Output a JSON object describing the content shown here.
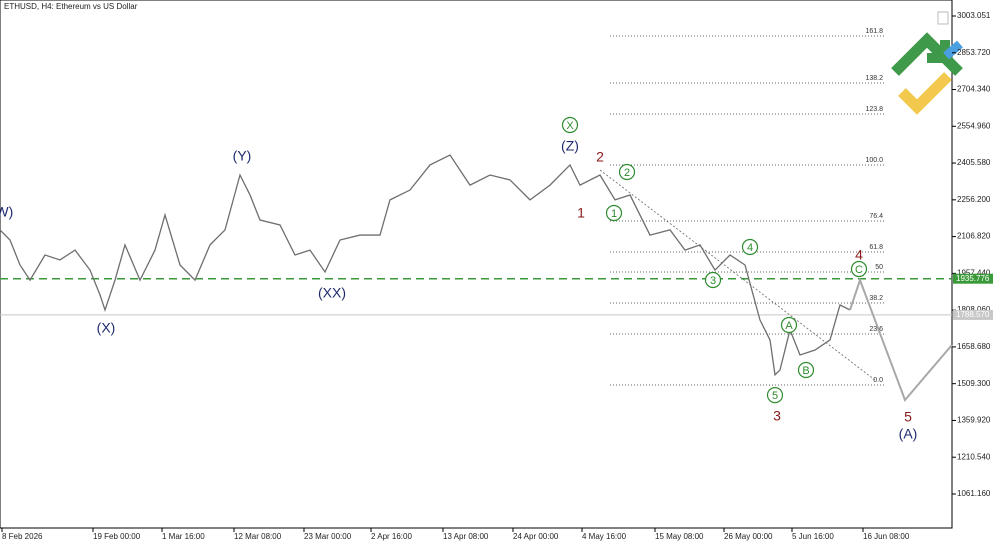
{
  "chart_data": {
    "type": "line",
    "title": "ETHUSD, H4:  Ethereum vs US Dollar",
    "xlim": [
      0,
      952
    ],
    "ylim": [
      923,
      3068
    ],
    "yticks": [
      {
        "value": 3003.051,
        "label": "3003.051"
      },
      {
        "value": 2853.72,
        "label": "2853.720"
      },
      {
        "value": 2704.34,
        "label": "2704.340"
      },
      {
        "value": 2554.96,
        "label": "2554.960"
      },
      {
        "value": 2405.58,
        "label": "2405.580"
      },
      {
        "value": 2256.2,
        "label": "2256.200"
      },
      {
        "value": 2106.82,
        "label": "2106.820"
      },
      {
        "value": 1957.44,
        "label": "1957.440"
      },
      {
        "value": 1808.06,
        "label": "1808.060"
      },
      {
        "value": 1658.68,
        "label": "1658.680"
      },
      {
        "value": 1509.3,
        "label": "1509.300"
      },
      {
        "value": 1359.92,
        "label": "1359.920"
      },
      {
        "value": 1210.54,
        "label": "1210.540"
      },
      {
        "value": 1061.16,
        "label": "1061.160"
      }
    ],
    "xticks": [
      {
        "value": 2,
        "label": "8 Feb 2026"
      },
      {
        "value": 93,
        "label": "19 Feb 00:00"
      },
      {
        "value": 162,
        "label": "1 Mar 16:00"
      },
      {
        "value": 234,
        "label": "12 Mar 08:00"
      },
      {
        "value": 304,
        "label": "23 Mar 00:00"
      },
      {
        "value": 371,
        "label": "2 Apr 16:00"
      },
      {
        "value": 443,
        "label": "13 Apr 08:00"
      },
      {
        "value": 513,
        "label": "24 Apr 00:00"
      },
      {
        "value": 582,
        "label": "4 May 16:00"
      },
      {
        "value": 655,
        "label": "15 May 08:00"
      },
      {
        "value": 724,
        "label": "26 May 00:00"
      },
      {
        "value": 792,
        "label": "5 Jun 16:00"
      },
      {
        "value": 863,
        "label": "16 Jun 08:00"
      }
    ],
    "series": [
      {
        "name": "ETHUSD",
        "color": "#6e6e6e",
        "x": [
          0,
          10,
          20,
          30,
          45,
          60,
          75,
          90,
          100,
          105,
          115,
          125,
          140,
          155,
          165,
          180,
          195,
          210,
          225,
          240,
          250,
          260,
          280,
          295,
          310,
          325,
          340,
          360,
          380,
          390,
          410,
          430,
          450,
          470,
          490,
          510,
          530,
          550,
          570,
          580,
          600,
          615,
          630,
          650,
          670,
          685,
          700,
          715,
          730,
          745,
          760,
          770,
          775,
          780,
          790,
          800,
          815,
          830,
          840,
          850
        ],
        "values": [
          2133.7,
          2093,
          1991.5,
          1930,
          2032,
          2012,
          2052,
          1971,
          1870,
          1809,
          1930,
          2073,
          1930,
          2052,
          2195,
          1991.5,
          1930,
          2073,
          2134,
          2357,
          2276,
          2174,
          2154,
          2032,
          2052,
          1963,
          2093,
          2113,
          2113,
          2256,
          2296,
          2398,
          2438,
          2316,
          2357,
          2337,
          2256,
          2316,
          2398,
          2316,
          2357,
          2256,
          2276,
          2113,
          2134,
          2052,
          2073,
          1971,
          2032,
          1991.5,
          1768,
          1687,
          1545,
          1565,
          1728,
          1626,
          1646,
          1687,
          1829,
          1809
        ]
      },
      {
        "name": "Projection",
        "color": "#a8a8a8",
        "x": [
          850,
          860,
          905,
          952
        ],
        "values": [
          1809,
          1930,
          1443,
          1667
        ]
      }
    ],
    "levels": [
      {
        "value": 1935.776,
        "label": "1935.776",
        "color": "#3a9a3a",
        "dashed": true
      },
      {
        "value": 1788.57,
        "label": "1788.570",
        "color": "#c8c8c8",
        "dashed": false
      }
    ],
    "fib": [
      {
        "value": 2921.8,
        "label": "161.8"
      },
      {
        "value": 2730.8,
        "label": "138.2"
      },
      {
        "value": 2605,
        "label": "123.8"
      },
      {
        "value": 2397.7,
        "label": "100.0"
      },
      {
        "value": 2170.2,
        "label": "76.4"
      },
      {
        "value": 2044.3,
        "label": "61.8"
      },
      {
        "value": 1963,
        "label": "50"
      },
      {
        "value": 1837,
        "label": "38.2"
      },
      {
        "value": 1711.2,
        "label": "23.6"
      },
      {
        "value": 1504,
        "label": "0.0"
      }
    ],
    "fib_x": [
      610,
      885
    ],
    "annotations": [
      {
        "text": "(W)",
        "x": 2,
        "y": 2206.8,
        "color": "#1f2a6e",
        "circled": false
      },
      {
        "text": "(X)",
        "x": 106,
        "y": 1735.5,
        "color": "#1f2a6e",
        "circled": false
      },
      {
        "text": "(Y)",
        "x": 242,
        "y": 2434.3,
        "color": "#1f2a6e",
        "circled": false
      },
      {
        "text": "(XX)",
        "x": 332,
        "y": 1877.7,
        "color": "#1f2a6e",
        "circled": false
      },
      {
        "text": "(Z)",
        "x": 570,
        "y": 2474.9,
        "color": "#1f2a6e",
        "circled": false
      },
      {
        "text": "X",
        "x": 570,
        "y": 2560.2,
        "color": "#2e8b2e",
        "circled": true
      },
      {
        "text": "2",
        "x": 600,
        "y": 2430.2,
        "color": "#8b1a1a",
        "circled": false
      },
      {
        "text": "1",
        "x": 581,
        "y": 2202.7,
        "color": "#8b1a1a",
        "circled": false
      },
      {
        "text": "1",
        "x": 614,
        "y": 2202.7,
        "color": "#2e8b2e",
        "circled": true
      },
      {
        "text": "2",
        "x": 627,
        "y": 2369.3,
        "color": "#2e8b2e",
        "circled": true
      },
      {
        "text": "3",
        "x": 713,
        "y": 1930.5,
        "color": "#2e8b2e",
        "circled": true
      },
      {
        "text": "4",
        "x": 750,
        "y": 2064.6,
        "color": "#2e8b2e",
        "circled": true
      },
      {
        "text": "5",
        "x": 775,
        "y": 1462.9,
        "color": "#2e8b2e",
        "circled": true
      },
      {
        "text": "3",
        "x": 777,
        "y": 1377.9,
        "color": "#8b1a1a",
        "circled": false
      },
      {
        "text": "A",
        "x": 789,
        "y": 1747.7,
        "color": "#2e8b2e",
        "circled": true
      },
      {
        "text": "B",
        "x": 806,
        "y": 1564.9,
        "color": "#2e8b2e",
        "circled": true
      },
      {
        "text": "C",
        "x": 859,
        "y": 1975.2,
        "color": "#2e8b2e",
        "circled": true
      },
      {
        "text": "4",
        "x": 859,
        "y": 2032.1,
        "color": "#8b1a1a",
        "circled": false
      },
      {
        "text": "5",
        "x": 908,
        "y": 1373.9,
        "color": "#8b1a1a",
        "circled": false
      },
      {
        "text": "(A)",
        "x": 908,
        "y": 1304.9,
        "color": "#1f2a6e",
        "circled": false
      }
    ]
  }
}
